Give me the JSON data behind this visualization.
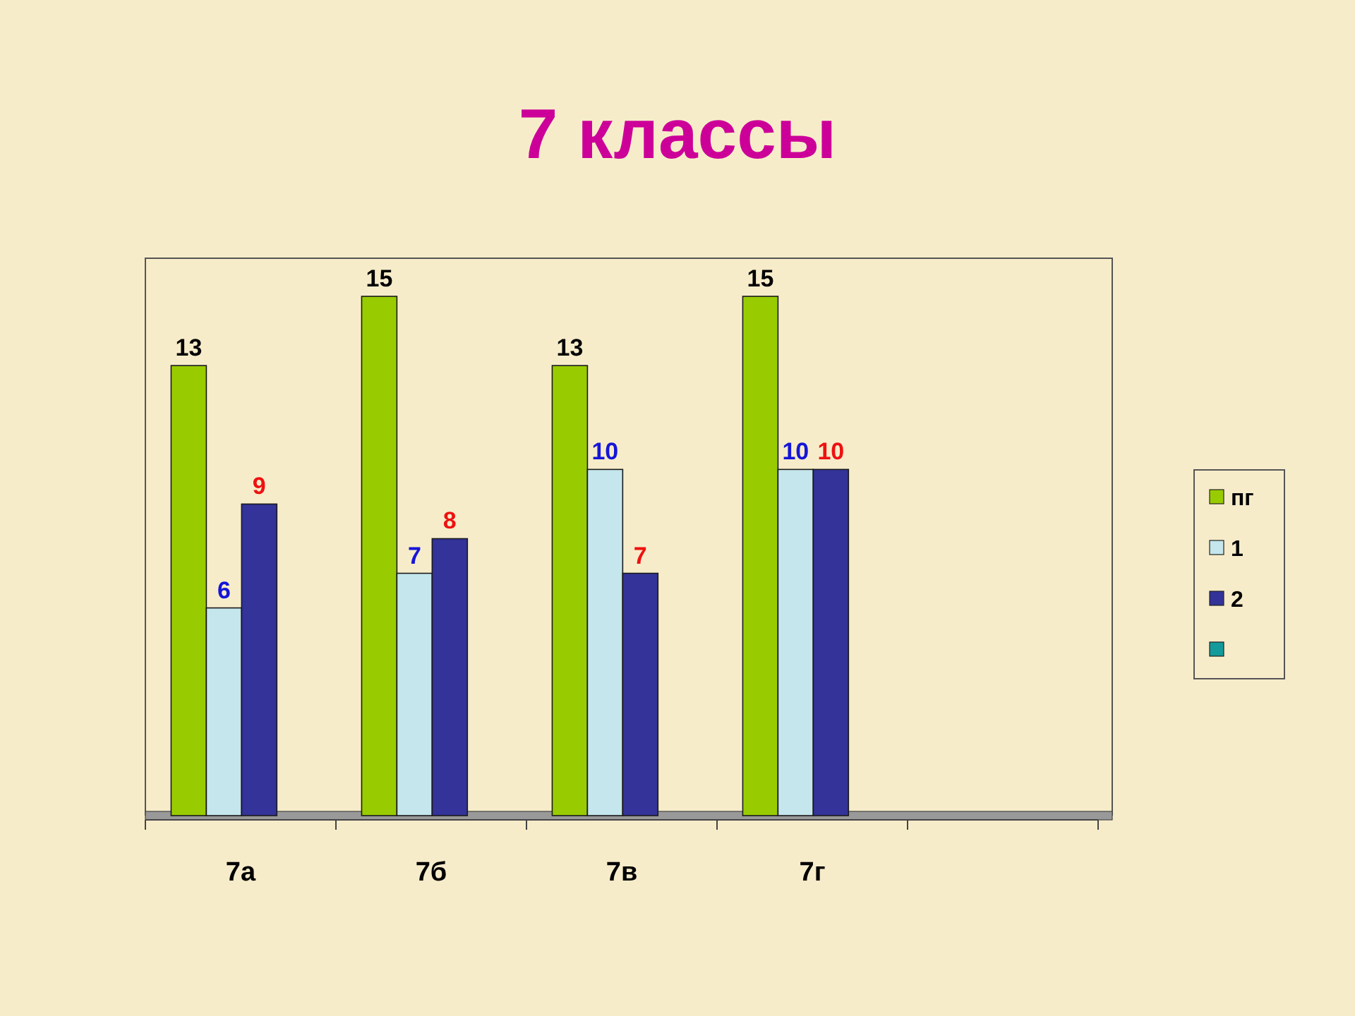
{
  "chart_data": {
    "type": "bar",
    "title": "7 классы",
    "categories": [
      "7а",
      "7б",
      "7в",
      "7г",
      null
    ],
    "series": [
      {
        "name": "пг",
        "color": "#99cc00",
        "values": [
          13,
          15,
          13,
          15,
          null
        ]
      },
      {
        "name": "1",
        "color": "#c4e6ec",
        "values": [
          6,
          7,
          10,
          10,
          null
        ]
      },
      {
        "name": "2",
        "color": "#333399",
        "values": [
          9,
          8,
          7,
          10,
          null
        ]
      },
      {
        "color": "#139a9a",
        "values": [
          null,
          null,
          null,
          null,
          null
        ]
      }
    ],
    "data_labels": true,
    "legend": "right",
    "tick_labels": "x"
  }
}
